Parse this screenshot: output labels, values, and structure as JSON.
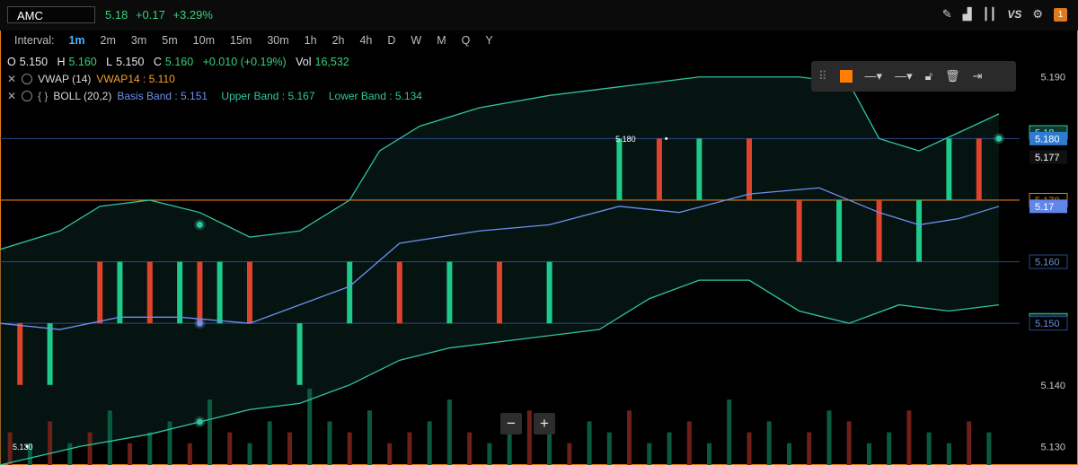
{
  "header": {
    "symbol": "AMC",
    "last": "5.18",
    "change": "+0.17",
    "change_pct": "+3.29%",
    "vs_label": "VS",
    "badge": "1",
    "icons": [
      "pencil-icon",
      "chart-icon",
      "candles-icon",
      "vs-icon",
      "gear-icon",
      "badge-icon"
    ]
  },
  "intervals": {
    "label": "Interval:",
    "items": [
      "1m",
      "2m",
      "3m",
      "5m",
      "10m",
      "15m",
      "30m",
      "1h",
      "2h",
      "4h",
      "D",
      "W",
      "M",
      "Q",
      "Y"
    ],
    "active": "1m"
  },
  "ohlc": {
    "o_label": "O",
    "o": "5.150",
    "h_label": "H",
    "h": "5.160",
    "l_label": "L",
    "l": "5.150",
    "c_label": "C",
    "c": "5.160",
    "chg": "+0.010 (+0.19%)",
    "vol_label": "Vol",
    "vol": "16,532"
  },
  "indicators": {
    "vwap_name": "VWAP (14)",
    "vwap_value": "VWAP14 : 5.110",
    "boll_name": "BOLL (20,2)",
    "basis": "Basis Band : 5.151",
    "upper": "Upper Band : 5.167",
    "lower": "Lower Band : 5.134",
    "boll_brace": "{ }"
  },
  "zoom": {
    "minus": "−",
    "plus": "+"
  },
  "colors": {
    "up": "#1ec98a",
    "down": "#e0432c",
    "band": "#31c4a2",
    "basis": "#6e8ff0",
    "frame": "#e07b1a",
    "level": "#2a4a8a"
  },
  "chart_data": {
    "type": "bar",
    "title": "",
    "yaxis_ticks": [
      "5.190",
      "5.177",
      "5.170",
      "5.160",
      "5.150",
      "5.140",
      "5.130"
    ],
    "ylim": [
      5.127,
      5.192
    ],
    "price_tags": [
      {
        "label": "5.18",
        "value": 5.181,
        "kind": "band"
      },
      {
        "label": "5.180",
        "value": 5.18,
        "kind": "last"
      },
      {
        "label": "5.177",
        "value": 5.177,
        "kind": "plain"
      },
      {
        "label": "5.170",
        "value": 5.17,
        "kind": "orange"
      },
      {
        "label": "5.17",
        "value": 5.169,
        "kind": "basis"
      },
      {
        "label": "5.160",
        "value": 5.16,
        "kind": "level"
      },
      {
        "label": "5.15",
        "value": 5.1505,
        "kind": "band"
      },
      {
        "label": "5.150",
        "value": 5.15,
        "kind": "level"
      }
    ],
    "annotations": [
      {
        "label": "5.180",
        "value": 5.18,
        "x": 64
      },
      {
        "label": "5.130",
        "value": 5.13,
        "x": 0
      }
    ],
    "level_lines": [
      5.18,
      5.16,
      5.15
    ],
    "orange_line": 5.17,
    "bars": [
      {
        "x": 2,
        "o": 5.15,
        "c": 5.14,
        "color": "down"
      },
      {
        "x": 5,
        "o": 5.14,
        "c": 5.15,
        "color": "up"
      },
      {
        "x": 10,
        "o": 5.16,
        "c": 5.15,
        "color": "down"
      },
      {
        "x": 12,
        "o": 5.15,
        "c": 5.16,
        "color": "up"
      },
      {
        "x": 15,
        "o": 5.16,
        "c": 5.15,
        "color": "down"
      },
      {
        "x": 18,
        "o": 5.15,
        "c": 5.16,
        "color": "up"
      },
      {
        "x": 20,
        "o": 5.16,
        "c": 5.15,
        "color": "down"
      },
      {
        "x": 22,
        "o": 5.15,
        "c": 5.16,
        "color": "up"
      },
      {
        "x": 25,
        "o": 5.16,
        "c": 5.15,
        "color": "down"
      },
      {
        "x": 30,
        "o": 5.14,
        "c": 5.15,
        "color": "up"
      },
      {
        "x": 35,
        "o": 5.15,
        "c": 5.16,
        "color": "up"
      },
      {
        "x": 40,
        "o": 5.16,
        "c": 5.15,
        "color": "down"
      },
      {
        "x": 45,
        "o": 5.15,
        "c": 5.16,
        "color": "up"
      },
      {
        "x": 50,
        "o": 5.16,
        "c": 5.15,
        "color": "down"
      },
      {
        "x": 55,
        "o": 5.15,
        "c": 5.16,
        "color": "up"
      },
      {
        "x": 62,
        "o": 5.17,
        "c": 5.18,
        "color": "up"
      },
      {
        "x": 66,
        "o": 5.18,
        "c": 5.17,
        "color": "down"
      },
      {
        "x": 70,
        "o": 5.17,
        "c": 5.18,
        "color": "up"
      },
      {
        "x": 75,
        "o": 5.18,
        "c": 5.17,
        "color": "down"
      },
      {
        "x": 80,
        "o": 5.17,
        "c": 5.16,
        "color": "down"
      },
      {
        "x": 84,
        "o": 5.16,
        "c": 5.17,
        "color": "up"
      },
      {
        "x": 88,
        "o": 5.17,
        "c": 5.16,
        "color": "down"
      },
      {
        "x": 92,
        "o": 5.16,
        "c": 5.17,
        "color": "up"
      },
      {
        "x": 95,
        "o": 5.17,
        "c": 5.18,
        "color": "up"
      },
      {
        "x": 98,
        "o": 5.18,
        "c": 5.17,
        "color": "down"
      }
    ],
    "volume": [
      3,
      2,
      4,
      2,
      3,
      5,
      2,
      3,
      4,
      2,
      6,
      3,
      2,
      4,
      3,
      7,
      4,
      3,
      5,
      2,
      3,
      4,
      6,
      3,
      2,
      4,
      5,
      3,
      2,
      4,
      3,
      5,
      2,
      3,
      4,
      2,
      6,
      3,
      4,
      2,
      3,
      5,
      4,
      2,
      3,
      5,
      3,
      2,
      4,
      3
    ],
    "volume_colors": [
      "down",
      "up",
      "down",
      "up",
      "down",
      "up",
      "down",
      "up",
      "up",
      "down",
      "up",
      "down",
      "up",
      "up",
      "down",
      "up",
      "up",
      "down",
      "up",
      "down",
      "down",
      "up",
      "up",
      "down",
      "up",
      "up",
      "down",
      "up",
      "down",
      "up",
      "up",
      "down",
      "up",
      "up",
      "down",
      "up",
      "up",
      "down",
      "up",
      "up",
      "down",
      "up",
      "down",
      "up",
      "up",
      "down",
      "up",
      "up",
      "down",
      "up"
    ],
    "upper_band": [
      [
        0,
        5.162
      ],
      [
        6,
        5.165
      ],
      [
        10,
        5.169
      ],
      [
        15,
        5.17
      ],
      [
        20,
        5.168
      ],
      [
        25,
        5.164
      ],
      [
        30,
        5.165
      ],
      [
        35,
        5.17
      ],
      [
        38,
        5.178
      ],
      [
        42,
        5.182
      ],
      [
        48,
        5.185
      ],
      [
        55,
        5.187
      ],
      [
        60,
        5.188
      ],
      [
        65,
        5.189
      ],
      [
        70,
        5.19
      ],
      [
        75,
        5.19
      ],
      [
        80,
        5.19
      ],
      [
        85,
        5.189
      ],
      [
        88,
        5.18
      ],
      [
        92,
        5.178
      ],
      [
        96,
        5.181
      ],
      [
        100,
        5.184
      ]
    ],
    "basis_band": [
      [
        0,
        5.15
      ],
      [
        6,
        5.149
      ],
      [
        12,
        5.151
      ],
      [
        18,
        5.151
      ],
      [
        25,
        5.15
      ],
      [
        30,
        5.153
      ],
      [
        35,
        5.156
      ],
      [
        40,
        5.163
      ],
      [
        48,
        5.165
      ],
      [
        55,
        5.166
      ],
      [
        62,
        5.169
      ],
      [
        68,
        5.168
      ],
      [
        75,
        5.171
      ],
      [
        82,
        5.172
      ],
      [
        88,
        5.168
      ],
      [
        92,
        5.166
      ],
      [
        96,
        5.167
      ],
      [
        100,
        5.169
      ]
    ],
    "lower_band": [
      [
        0,
        5.127
      ],
      [
        8,
        5.13
      ],
      [
        15,
        5.132
      ],
      [
        20,
        5.134
      ],
      [
        25,
        5.136
      ],
      [
        30,
        5.137
      ],
      [
        35,
        5.14
      ],
      [
        40,
        5.144
      ],
      [
        45,
        5.146
      ],
      [
        55,
        5.148
      ],
      [
        60,
        5.149
      ],
      [
        65,
        5.154
      ],
      [
        70,
        5.157
      ],
      [
        75,
        5.157
      ],
      [
        80,
        5.152
      ],
      [
        85,
        5.15
      ],
      [
        90,
        5.153
      ],
      [
        95,
        5.152
      ],
      [
        100,
        5.153
      ]
    ],
    "markers": [
      {
        "x": 20,
        "value": 5.166,
        "kind": "band"
      },
      {
        "x": 20,
        "value": 5.15,
        "kind": "basis"
      },
      {
        "x": 20,
        "value": 5.134,
        "kind": "band"
      },
      {
        "x": 100,
        "value": 5.18,
        "kind": "band"
      }
    ],
    "xlabel": "",
    "ylabel": "",
    "grid": false
  }
}
